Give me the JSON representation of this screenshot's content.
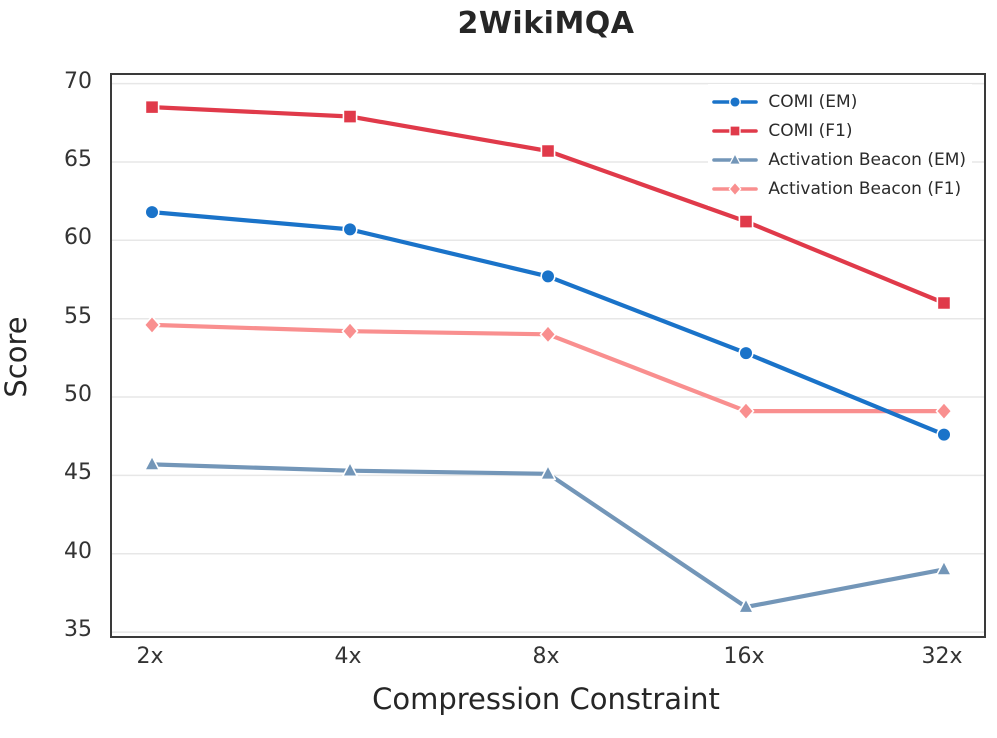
{
  "chart_data": {
    "type": "line",
    "title": "2WikiMQA",
    "xlabel": "Compression Constraint",
    "ylabel": "Score",
    "categories": [
      "2x",
      "4x",
      "8x",
      "16x",
      "32x"
    ],
    "yticks": [
      35,
      40,
      45,
      50,
      55,
      60,
      65,
      70
    ],
    "ylim": [
      34.75,
      70.55
    ],
    "grid": "horizontal-only",
    "legend_position": "upper right",
    "series": [
      {
        "name": "COMI (EM)",
        "marker": "circle",
        "color": "#1a73c9",
        "values": [
          61.8,
          60.7,
          57.7,
          52.8,
          47.6
        ]
      },
      {
        "name": "COMI (F1)",
        "marker": "square",
        "color": "#e03a4a",
        "values": [
          68.5,
          67.9,
          65.7,
          61.2,
          56.0
        ]
      },
      {
        "name": "Activation Beacon (EM)",
        "marker": "triangle",
        "color": "#7396b8",
        "values": [
          45.7,
          45.3,
          45.1,
          36.6,
          39.0
        ]
      },
      {
        "name": "Activation Beacon (F1)",
        "marker": "diamond",
        "color": "#f98f8f",
        "values": [
          54.6,
          54.2,
          54.0,
          49.1,
          49.1
        ]
      }
    ],
    "draw_order": [
      2,
      3,
      0,
      1
    ],
    "colors": {
      "gridline": "#e7e7e7",
      "spine": "#3a3a3a",
      "marker_edge": "#ffffff",
      "text": "#262626",
      "tick_text": "#333333"
    }
  }
}
